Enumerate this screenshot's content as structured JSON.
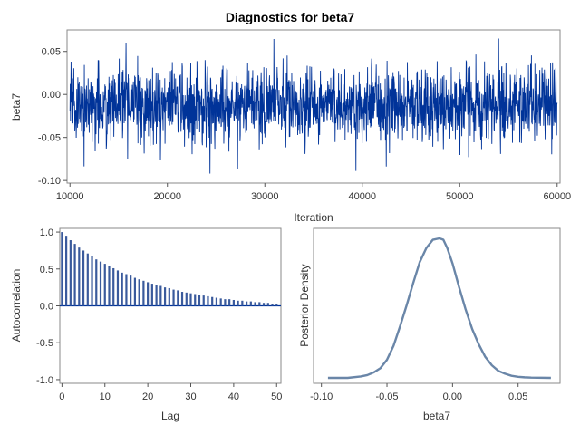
{
  "title": "Diagnostics for beta7",
  "colors": {
    "trace": "#003399",
    "acf_bar": "#3a5a9c",
    "density": "#6a86a8",
    "frame": "#8a8a8a"
  },
  "chart_data": [
    {
      "type": "line",
      "panel": "trace",
      "xlabel": "Iteration",
      "ylabel": "beta7",
      "xlim": [
        9700,
        60300
      ],
      "ylim": [
        -0.103,
        0.075
      ],
      "x_ticks": [
        "10000",
        "20000",
        "30000",
        "40000",
        "50000",
        "60000"
      ],
      "y_ticks": [
        "0.05",
        "0.00",
        "-0.05",
        "-0.10"
      ],
      "x_range": [
        10000,
        60000
      ],
      "n_points": 50000,
      "mean": -0.012,
      "sd": 0.022,
      "min": -0.092,
      "max": 0.065
    },
    {
      "type": "bar",
      "panel": "autocorrelation",
      "xlabel": "Lag",
      "ylabel": "Autocorrelation",
      "xlim": [
        -0.5,
        51
      ],
      "ylim": [
        -1.05,
        1.05
      ],
      "x_ticks": [
        "0",
        "10",
        "20",
        "30",
        "40",
        "50"
      ],
      "y_ticks": [
        "1.0",
        "0.5",
        "0.0",
        "-0.5",
        "-1.0"
      ],
      "lags": [
        0,
        1,
        2,
        3,
        4,
        5,
        6,
        7,
        8,
        9,
        10,
        11,
        12,
        13,
        14,
        15,
        16,
        17,
        18,
        19,
        20,
        21,
        22,
        23,
        24,
        25,
        26,
        27,
        28,
        29,
        30,
        31,
        32,
        33,
        34,
        35,
        36,
        37,
        38,
        39,
        40,
        41,
        42,
        43,
        44,
        45,
        46,
        47,
        48,
        49,
        50
      ],
      "values": [
        1.0,
        0.95,
        0.89,
        0.84,
        0.79,
        0.75,
        0.71,
        0.67,
        0.63,
        0.6,
        0.57,
        0.54,
        0.51,
        0.48,
        0.45,
        0.43,
        0.41,
        0.38,
        0.36,
        0.34,
        0.32,
        0.3,
        0.28,
        0.27,
        0.25,
        0.24,
        0.22,
        0.21,
        0.19,
        0.18,
        0.17,
        0.16,
        0.15,
        0.14,
        0.13,
        0.12,
        0.11,
        0.1,
        0.09,
        0.09,
        0.08,
        0.07,
        0.07,
        0.06,
        0.06,
        0.05,
        0.05,
        0.04,
        0.04,
        0.03,
        0.03
      ]
    },
    {
      "type": "line",
      "panel": "density",
      "xlabel": "beta7",
      "ylabel": "Posterior Density",
      "xlim": [
        -0.106,
        0.082
      ],
      "x_ticks": [
        "-0.10",
        "-0.05",
        "0.00",
        "0.05"
      ],
      "x": [
        -0.095,
        -0.08,
        -0.07,
        -0.065,
        -0.06,
        -0.055,
        -0.05,
        -0.045,
        -0.04,
        -0.035,
        -0.03,
        -0.025,
        -0.02,
        -0.015,
        -0.01,
        -0.007,
        -0.004,
        0.0,
        0.005,
        0.01,
        0.015,
        0.02,
        0.025,
        0.03,
        0.035,
        0.04,
        0.045,
        0.05,
        0.055,
        0.06,
        0.075
      ],
      "y": [
        0.0,
        0.0,
        0.01,
        0.02,
        0.04,
        0.07,
        0.13,
        0.23,
        0.37,
        0.52,
        0.68,
        0.83,
        0.93,
        0.99,
        1.0,
        0.99,
        0.93,
        0.82,
        0.65,
        0.49,
        0.35,
        0.24,
        0.15,
        0.09,
        0.05,
        0.03,
        0.015,
        0.008,
        0.004,
        0.002,
        0.0
      ]
    }
  ]
}
